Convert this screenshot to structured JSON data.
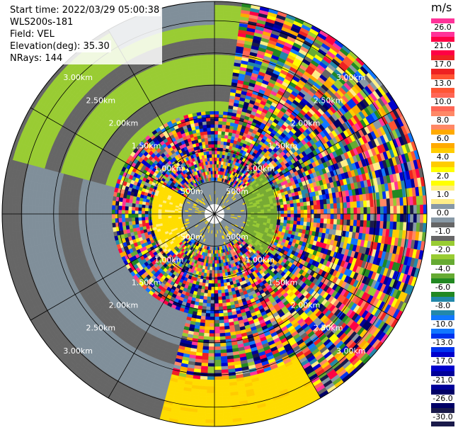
{
  "info": {
    "start_time": "Start time: 2022/03/29 05:00:38",
    "site": "WLS200s-181",
    "field": "Field: VEL",
    "elevation": "Elevation(deg): 35.30",
    "nrays": "NRays: 144"
  },
  "colorbar": {
    "unit": "m/s",
    "bins": [
      {
        "label": "26.0",
        "color": "#ff3399"
      },
      {
        "label": "21.0",
        "color": "#ff0044"
      },
      {
        "label": "17.0",
        "color": "#ee2222"
      },
      {
        "label": "13.0",
        "color": "#ff5533"
      },
      {
        "label": "10.0",
        "color": "#ff6655"
      },
      {
        "label": "8.0",
        "color": "#ff8866"
      },
      {
        "label": "6.0",
        "color": "#ffaa00"
      },
      {
        "label": "4.0",
        "color": "#ffcc00"
      },
      {
        "label": "2.0",
        "color": "#ffff00"
      },
      {
        "label": "1.0",
        "color": "#ffee88"
      },
      {
        "label": "0.0",
        "color": "#8899a6"
      },
      {
        "label": "-1.0",
        "color": "#666666"
      },
      {
        "label": "-2.0",
        "color": "#99cc33"
      },
      {
        "label": "-4.0",
        "color": "#66aa33"
      },
      {
        "label": "-6.0",
        "color": "#228822"
      },
      {
        "label": "-8.0",
        "color": "#2288aa"
      },
      {
        "label": "-10.0",
        "color": "#1177ff"
      },
      {
        "label": "-13.0",
        "color": "#0033ee"
      },
      {
        "label": "-17.0",
        "color": "#0000cc"
      },
      {
        "label": "-21.0",
        "color": "#000099"
      },
      {
        "label": "-26.0",
        "color": "#000066"
      },
      {
        "label": "-30.0",
        "color": "#1a1a4a"
      }
    ]
  },
  "rings": [
    {
      "label": "500m",
      "km": 0.5
    },
    {
      "label": "1.00km",
      "km": 1.0
    },
    {
      "label": "1.50km",
      "km": 1.5
    },
    {
      "label": "2.00km",
      "km": 2.0
    },
    {
      "label": "2.50km",
      "km": 2.5
    },
    {
      "label": "3.00km",
      "km": 3.0
    }
  ],
  "range_max_km": 3.3,
  "nrays": 144
}
